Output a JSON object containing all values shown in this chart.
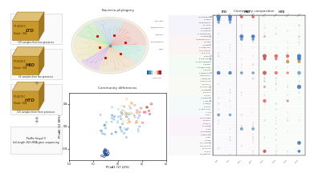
{
  "bg_color": "#ffffff",
  "phylogeny_title": "Bacteria phylogeny",
  "community_diff_title": "Community differences",
  "community_comp_title": "Community composition",
  "pcoa_xlabel": "PCoA1 (17.22%)",
  "pcoa_ylabel": "PCoA2 (12.88%)",
  "pcoa_xlim": [
    -0.4,
    0.4
  ],
  "pcoa_ylim": [
    -0.06,
    0.06
  ],
  "boxes": [
    {
      "label": "LTD",
      "sub1": "PT: 40-55°C",
      "sub2": "Period: ~20d",
      "count": "103 samples from four provinces"
    },
    {
      "label": "MID",
      "sub1": "PT: 55-65°C",
      "sub2": "Period: ~30d",
      "count": "92 samples from five provinces"
    },
    {
      "label": "HTD",
      "sub1": "PT: 60-70°C",
      "sub2": "Period: ~60d",
      "count": "101 samples from three provinces"
    }
  ],
  "sequencing_label": "PacBio Sequel II\nfull-length 16S rRNA gene sequencing",
  "n_species": 50,
  "n_cols": 8,
  "col_groups": [
    "LTD",
    "LTD",
    "MID",
    "MID",
    "HTD",
    "HTD",
    "HTD",
    "HTD"
  ],
  "col_labels": [
    "LTD1",
    "LTD2",
    "MID1",
    "MID2",
    "HTD1",
    "HTD2",
    "HTD3",
    "HTD4"
  ]
}
